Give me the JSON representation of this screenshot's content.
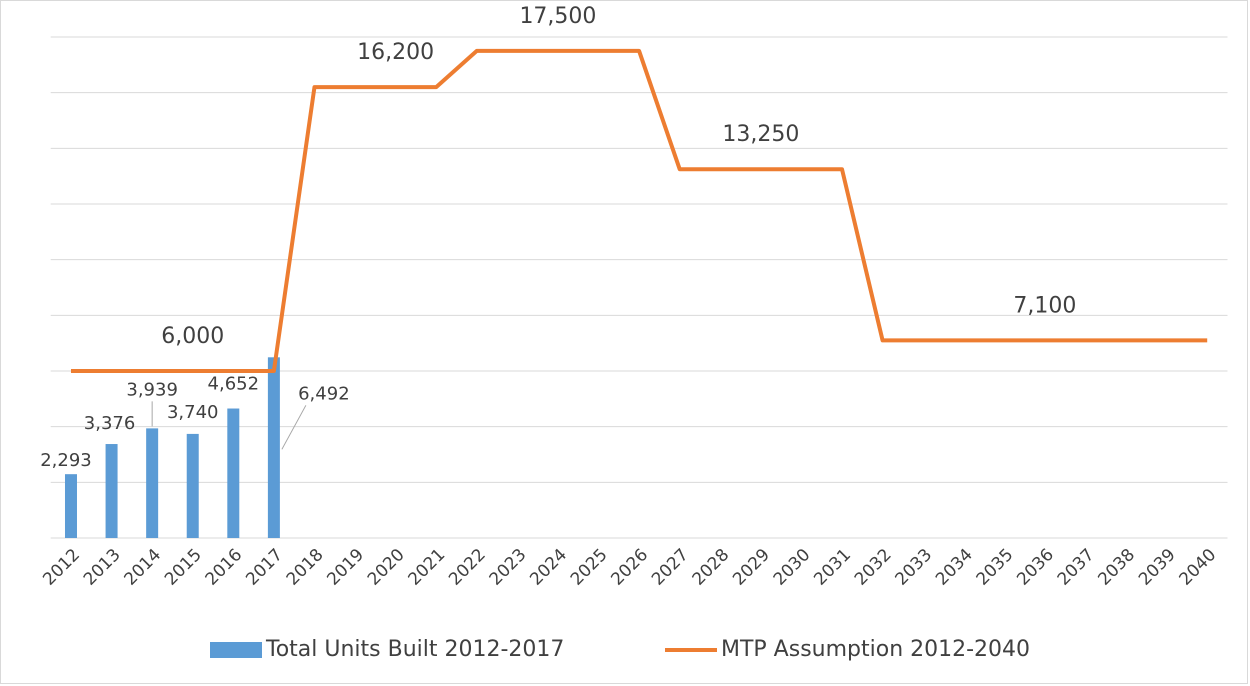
{
  "chart_data": {
    "type": "combo",
    "categories": [
      "2012",
      "2013",
      "2014",
      "2015",
      "2016",
      "2017",
      "2018",
      "2019",
      "2020",
      "2021",
      "2022",
      "2023",
      "2024",
      "2025",
      "2026",
      "2027",
      "2028",
      "2029",
      "2030",
      "2031",
      "2032",
      "2033",
      "2034",
      "2035",
      "2036",
      "2037",
      "2038",
      "2039",
      "2040"
    ],
    "series": [
      {
        "name": "Total Units Built 2012-2017",
        "type": "bar",
        "color": "#5b9bd5",
        "values": [
          2293,
          3376,
          3939,
          3740,
          4652,
          6492,
          null,
          null,
          null,
          null,
          null,
          null,
          null,
          null,
          null,
          null,
          null,
          null,
          null,
          null,
          null,
          null,
          null,
          null,
          null,
          null,
          null,
          null,
          null
        ],
        "value_labels": [
          "2,293",
          "3,376",
          "3,939",
          "3,740",
          "4,652",
          "6,492",
          null,
          null,
          null,
          null,
          null,
          null,
          null,
          null,
          null,
          null,
          null,
          null,
          null,
          null,
          null,
          null,
          null,
          null,
          null,
          null,
          null,
          null,
          null
        ]
      },
      {
        "name": "MTP Assumption 2012-2040",
        "type": "line",
        "color": "#ed7d31",
        "values": [
          6000,
          6000,
          6000,
          6000,
          6000,
          6000,
          16200,
          16200,
          16200,
          16200,
          17500,
          17500,
          17500,
          17500,
          17500,
          13250,
          13250,
          13250,
          13250,
          13250,
          7100,
          7100,
          7100,
          7100,
          7100,
          7100,
          7100,
          7100,
          7100
        ],
        "value_labels": [
          null,
          null,
          null,
          "6,000",
          null,
          null,
          null,
          null,
          "16,200",
          null,
          null,
          null,
          "17,500",
          null,
          null,
          null,
          null,
          "13,250",
          null,
          null,
          null,
          null,
          null,
          null,
          "7,100",
          null,
          null,
          null,
          null
        ]
      }
    ],
    "ylim": [
      0,
      18000
    ],
    "yticks": [
      0,
      2000,
      4000,
      6000,
      8000,
      10000,
      12000,
      14000,
      16000,
      18000
    ],
    "grid": true,
    "legend": "bottom"
  }
}
